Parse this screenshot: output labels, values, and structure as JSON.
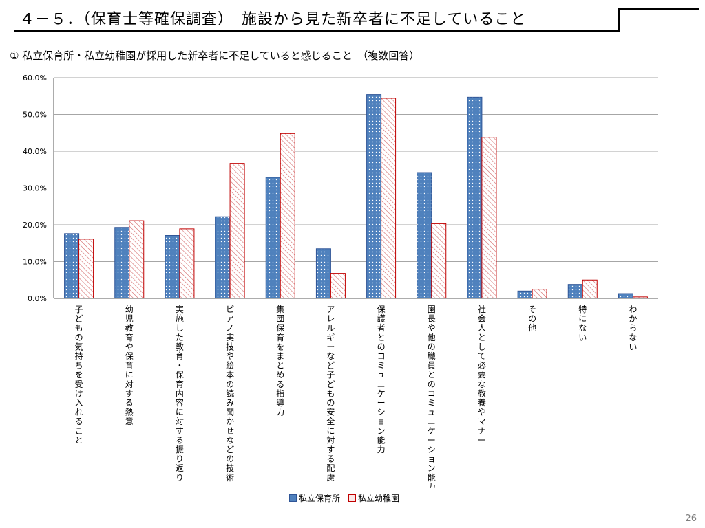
{
  "header": {
    "title": "４－５．（保育士等確保調査）　施設から見た新卒者に不足していること"
  },
  "subtitle": "① 私立保育所・私立幼稚園が採用した新卒者に不足していると感じること　（複数回答）",
  "page_number": "26",
  "colors": {
    "series_a_fill": "#4f81bd",
    "series_a_stroke": "#2f5597",
    "series_b_fill": "#fbe8e8",
    "series_b_stroke": "#c00000",
    "grid": "#a6a6a6"
  },
  "chart_data": {
    "type": "bar",
    "title": "",
    "xlabel": "",
    "ylabel": "",
    "ylim": [
      0,
      60
    ],
    "yticks": [
      "0.0%",
      "10.0%",
      "20.0%",
      "30.0%",
      "40.0%",
      "50.0%",
      "60.0%"
    ],
    "grid": true,
    "legend_position": "bottom",
    "categories": [
      "子どもの気持ちを受け入れること",
      "幼児教育や保育に対する熱意",
      "実施した教育・保育内容に対する振り返り",
      "ピアノ実技や絵本の読み聞かせなどの技術",
      "集団保育をまとめる指導力",
      "アレルギーなど子どもの安全に対する配慮",
      "保護者とのコミュニケーション能力",
      "園長や他の職員とのコミュニケーション能力",
      "社会人として必要な教養やマナー",
      "その他",
      "特にない",
      "わからない"
    ],
    "series": [
      {
        "name": "私立保育所",
        "values": [
          17.6,
          19.3,
          17.1,
          22.2,
          32.9,
          13.5,
          55.4,
          34.2,
          54.7,
          2.0,
          3.8,
          1.3
        ]
      },
      {
        "name": "私立幼稚園",
        "values": [
          16.1,
          21.1,
          18.9,
          36.7,
          44.8,
          6.8,
          54.4,
          20.3,
          43.8,
          2.5,
          5.0,
          0.4
        ]
      }
    ]
  }
}
